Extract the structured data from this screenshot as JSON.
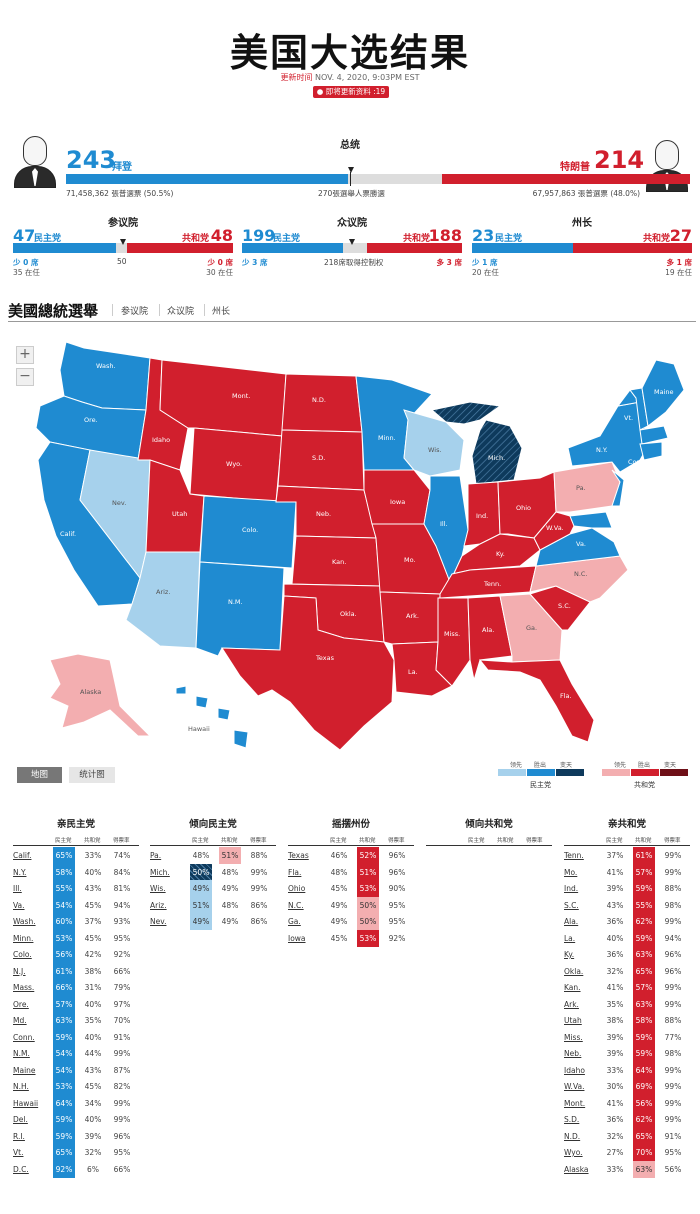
{
  "header": {
    "title": "美国大选结果",
    "updated_label": "更新时间",
    "updated_time": "NOV. 4, 2020, 9:03PM EST",
    "live_label": "● 即将更新资料 :19"
  },
  "president": {
    "title": "总统",
    "dem_num": "243",
    "dem_name": "拜登",
    "rep_num": "214",
    "rep_name": "特朗普",
    "dem_votes": "71,458,362 張普選票 (50.5%)",
    "rep_votes": "67,957,863 張普選票 (48.0%)",
    "threshold": "270張選舉人票勝選",
    "dem_ev": 243,
    "rep_ev": 214,
    "total_ev": 538
  },
  "senate": {
    "title": "参议院",
    "dem_num": "47",
    "dem_label": "民主党",
    "rep_num": "48",
    "rep_label": "共和党",
    "dem_change": "少 0 席",
    "rep_change": "少 0 席",
    "dem_holdover": "35 在任",
    "rep_holdover": "30 在任",
    "mid": "50",
    "dem_seats": 47,
    "rep_seats": 48,
    "total": 100
  },
  "house": {
    "title": "众议院",
    "dem_num": "199",
    "dem_label": "民主党",
    "rep_num": "188",
    "rep_label": "共和党",
    "dem_change": "少 3 席",
    "rep_change": "多 3 席",
    "mid": "218席取得控制权",
    "dem_seats": 199,
    "rep_seats": 188,
    "total": 435
  },
  "governor": {
    "title": "州长",
    "dem_num": "23",
    "dem_label": "民主党",
    "rep_num": "27",
    "rep_label": "共和党",
    "dem_change": "少 1 席",
    "rep_change": "多 1 席",
    "dem_holdover": "20 在任",
    "rep_holdover": "19 在任",
    "dem_seats": 23,
    "rep_seats": 27,
    "total": 50
  },
  "nav": {
    "brand": "美國總統選舉",
    "tabs": [
      "参议院",
      "众议院",
      "州长"
    ]
  },
  "map": {
    "zoom_in": "+",
    "zoom_out": "−",
    "labels": [
      "Wash.",
      "Ore.",
      "Calif.",
      "Nev.",
      "Idaho",
      "Mont.",
      "Wyo.",
      "Utah",
      "Ariz.",
      "Colo.",
      "N.M.",
      "N.D.",
      "S.D.",
      "Neb.",
      "Kan.",
      "Okla.",
      "Texas",
      "Minn.",
      "Iowa",
      "Mo.",
      "Ark.",
      "La.",
      "Wis.",
      "Ill.",
      "Mich.",
      "Ind.",
      "Ohio",
      "Ky.",
      "Tenn.",
      "Miss.",
      "Ala.",
      "Ga.",
      "Fla.",
      "S.C.",
      "N.C.",
      "Va.",
      "W.Va.",
      "Pa.",
      "N.Y.",
      "Maine",
      "Vt.",
      "Alaska",
      "Hawaii",
      "Conn."
    ]
  },
  "view_tabs": [
    "地图",
    "统计图"
  ],
  "legend": {
    "leading": "领先",
    "won": "胜出",
    "flipped": "变天",
    "dem": "民主党",
    "rep": "共和党"
  },
  "colors": {
    "dem_won": "#1f8bd1",
    "dem_lead": "#a6d1ec",
    "dem_flip": "#0e3a5c",
    "rep_won": "#d11f2d",
    "rep_lead": "#f3aeb0",
    "rep_flip": "#6e0f17"
  },
  "tables": {
    "sub_headers": [
      "民主党",
      "共和党",
      "得票率"
    ],
    "columns": [
      {
        "title": "亲民主党",
        "rows": [
          {
            "state": "Calif.",
            "d": "65%",
            "r": "33%",
            "t": "74%",
            "w": "dw"
          },
          {
            "state": "N.Y.",
            "d": "58%",
            "r": "40%",
            "t": "84%",
            "w": "dw"
          },
          {
            "state": "Ill.",
            "d": "55%",
            "r": "43%",
            "t": "81%",
            "w": "dw"
          },
          {
            "state": "Va.",
            "d": "54%",
            "r": "45%",
            "t": "94%",
            "w": "dw"
          },
          {
            "state": "Wash.",
            "d": "60%",
            "r": "37%",
            "t": "93%",
            "w": "dw"
          },
          {
            "state": "Minn.",
            "d": "53%",
            "r": "45%",
            "t": "95%",
            "w": "dw"
          },
          {
            "state": "Colo.",
            "d": "56%",
            "r": "42%",
            "t": "92%",
            "w": "dw"
          },
          {
            "state": "N.J.",
            "d": "61%",
            "r": "38%",
            "t": "66%",
            "w": "dw"
          },
          {
            "state": "Mass.",
            "d": "66%",
            "r": "31%",
            "t": "79%",
            "w": "dw"
          },
          {
            "state": "Ore.",
            "d": "57%",
            "r": "40%",
            "t": "97%",
            "w": "dw"
          },
          {
            "state": "Md.",
            "d": "63%",
            "r": "35%",
            "t": "70%",
            "w": "dw"
          },
          {
            "state": "Conn.",
            "d": "59%",
            "r": "40%",
            "t": "91%",
            "w": "dw"
          },
          {
            "state": "N.M.",
            "d": "54%",
            "r": "44%",
            "t": "99%",
            "w": "dw"
          },
          {
            "state": "Maine",
            "d": "54%",
            "r": "43%",
            "t": "87%",
            "w": "dw"
          },
          {
            "state": "N.H.",
            "d": "53%",
            "r": "45%",
            "t": "82%",
            "w": "dw"
          },
          {
            "state": "Hawaii",
            "d": "64%",
            "r": "34%",
            "t": "99%",
            "w": "dw"
          },
          {
            "state": "Del.",
            "d": "59%",
            "r": "40%",
            "t": "99%",
            "w": "dw"
          },
          {
            "state": "R.I.",
            "d": "59%",
            "r": "39%",
            "t": "96%",
            "w": "dw"
          },
          {
            "state": "Vt.",
            "d": "65%",
            "r": "32%",
            "t": "95%",
            "w": "dw"
          },
          {
            "state": "D.C.",
            "d": "92%",
            "r": "6%",
            "t": "66%",
            "w": "dw"
          }
        ]
      },
      {
        "title": "倾向民主党",
        "rows": [
          {
            "state": "Pa.",
            "d": "48%",
            "r": "51%",
            "t": "88%",
            "w": "rl"
          },
          {
            "state": "Mich.",
            "d": "50%",
            "r": "48%",
            "t": "99%",
            "w": "df"
          },
          {
            "state": "Wis.",
            "d": "49%",
            "r": "49%",
            "t": "99%",
            "w": "dl"
          },
          {
            "state": "Ariz.",
            "d": "51%",
            "r": "48%",
            "t": "86%",
            "w": "dl"
          },
          {
            "state": "Nev.",
            "d": "49%",
            "r": "49%",
            "t": "86%",
            "w": "dl"
          }
        ]
      },
      {
        "title": "摇摆州份",
        "rows": [
          {
            "state": "Texas",
            "d": "46%",
            "r": "52%",
            "t": "96%",
            "w": "rw"
          },
          {
            "state": "Fla.",
            "d": "48%",
            "r": "51%",
            "t": "96%",
            "w": "rw"
          },
          {
            "state": "Ohio",
            "d": "45%",
            "r": "53%",
            "t": "90%",
            "w": "rw"
          },
          {
            "state": "N.C.",
            "d": "49%",
            "r": "50%",
            "t": "95%",
            "w": "rl"
          },
          {
            "state": "Ga.",
            "d": "49%",
            "r": "50%",
            "t": "95%",
            "w": "rl"
          },
          {
            "state": "Iowa",
            "d": "45%",
            "r": "53%",
            "t": "92%",
            "w": "rw"
          }
        ]
      },
      {
        "title": "倾向共和党",
        "rows": []
      },
      {
        "title": "亲共和党",
        "rows": [
          {
            "state": "Tenn.",
            "d": "37%",
            "r": "61%",
            "t": "99%",
            "w": "rw"
          },
          {
            "state": "Mo.",
            "d": "41%",
            "r": "57%",
            "t": "99%",
            "w": "rw"
          },
          {
            "state": "Ind.",
            "d": "39%",
            "r": "59%",
            "t": "88%",
            "w": "rw"
          },
          {
            "state": "S.C.",
            "d": "43%",
            "r": "55%",
            "t": "98%",
            "w": "rw"
          },
          {
            "state": "Ala.",
            "d": "36%",
            "r": "62%",
            "t": "99%",
            "w": "rw"
          },
          {
            "state": "La.",
            "d": "40%",
            "r": "59%",
            "t": "94%",
            "w": "rw"
          },
          {
            "state": "Ky.",
            "d": "36%",
            "r": "63%",
            "t": "96%",
            "w": "rw"
          },
          {
            "state": "Okla.",
            "d": "32%",
            "r": "65%",
            "t": "96%",
            "w": "rw"
          },
          {
            "state": "Kan.",
            "d": "41%",
            "r": "57%",
            "t": "99%",
            "w": "rw"
          },
          {
            "state": "Ark.",
            "d": "35%",
            "r": "63%",
            "t": "99%",
            "w": "rw"
          },
          {
            "state": "Utah",
            "d": "38%",
            "r": "58%",
            "t": "88%",
            "w": "rw"
          },
          {
            "state": "Miss.",
            "d": "39%",
            "r": "59%",
            "t": "77%",
            "w": "rw"
          },
          {
            "state": "Neb.",
            "d": "39%",
            "r": "59%",
            "t": "98%",
            "w": "rw"
          },
          {
            "state": "Idaho",
            "d": "33%",
            "r": "64%",
            "t": "99%",
            "w": "rw"
          },
          {
            "state": "W.Va.",
            "d": "30%",
            "r": "69%",
            "t": "99%",
            "w": "rw"
          },
          {
            "state": "Mont.",
            "d": "41%",
            "r": "56%",
            "t": "99%",
            "w": "rw"
          },
          {
            "state": "S.D.",
            "d": "36%",
            "r": "62%",
            "t": "99%",
            "w": "rw"
          },
          {
            "state": "N.D.",
            "d": "32%",
            "r": "65%",
            "t": "91%",
            "w": "rw"
          },
          {
            "state": "Wyo.",
            "d": "27%",
            "r": "70%",
            "t": "95%",
            "w": "rw"
          },
          {
            "state": "Alaska",
            "d": "33%",
            "r": "63%",
            "t": "56%",
            "w": "rl"
          }
        ]
      }
    ]
  }
}
